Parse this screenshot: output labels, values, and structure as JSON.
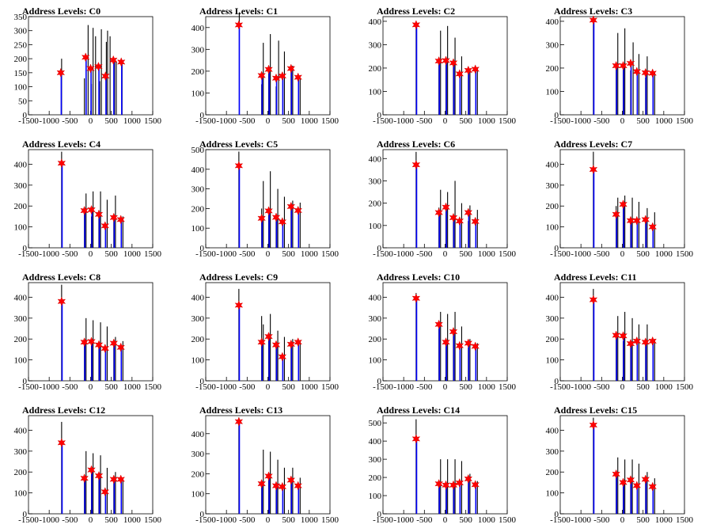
{
  "chart_data": [
    {
      "type": "bar",
      "title": "Address Levels: C0",
      "xlim": [
        -1500,
        1500
      ],
      "ylim": [
        0,
        350
      ],
      "yticks": [
        0,
        50,
        100,
        150,
        200,
        250,
        300,
        350
      ],
      "xticks": [
        -1500,
        -1000,
        -500,
        0,
        500,
        1000,
        1500
      ],
      "series": [
        {
          "x": [
            -700,
            -150,
            -60,
            20,
            60,
            120,
            220,
            260,
            380,
            410,
            470,
            580,
            620,
            760
          ],
          "values": [
            200,
            130,
            320,
            110,
            310,
            280,
            120,
            305,
            260,
            300,
            280,
            200,
            190,
            180
          ]
        }
      ],
      "peaks": {
        "x": [
          -720,
          -120,
          0,
          190,
          360,
          550,
          740
        ],
        "values": [
          150,
          205,
          165,
          172,
          138,
          195,
          188
        ]
      }
    },
    {
      "type": "bar",
      "title": "Address Levels: C1",
      "xlim": [
        -1500,
        1500
      ],
      "ylim": [
        0,
        450
      ],
      "yticks": [
        0,
        100,
        200,
        300,
        400
      ],
      "xticks": [
        -1500,
        -1000,
        -500,
        0,
        500,
        1000,
        1500
      ],
      "series": [
        {
          "x": [
            -690,
            -150,
            -110,
            20,
            60,
            200,
            260,
            360,
            400,
            560,
            600,
            740,
            780
          ],
          "values": [
            470,
            140,
            330,
            200,
            370,
            130,
            340,
            180,
            290,
            215,
            225,
            150,
            170
          ]
        }
      ],
      "peaks": {
        "x": [
          -700,
          -150,
          20,
          200,
          350,
          560,
          730
        ],
        "values": [
          412,
          180,
          208,
          168,
          178,
          212,
          172
        ]
      }
    },
    {
      "type": "bar",
      "title": "Address Levels: C2",
      "xlim": [
        -1500,
        1500
      ],
      "ylim": [
        0,
        420
      ],
      "yticks": [
        0,
        100,
        200,
        300,
        400
      ],
      "xticks": [
        -1500,
        -1000,
        -500,
        0,
        500,
        1000,
        1500
      ],
      "series": [
        {
          "x": [
            -700,
            -150,
            -110,
            20,
            60,
            200,
            240,
            360,
            400,
            560,
            600,
            740,
            780
          ],
          "values": [
            380,
            220,
            360,
            240,
            380,
            210,
            330,
            150,
            250,
            180,
            190,
            170,
            200
          ]
        }
      ],
      "peaks": {
        "x": [
          -700,
          -150,
          20,
          200,
          350,
          560,
          730
        ],
        "values": [
          385,
          230,
          232,
          222,
          175,
          190,
          195
        ]
      }
    },
    {
      "type": "bar",
      "title": "Address Levels: C3",
      "xlim": [
        -1500,
        1500
      ],
      "ylim": [
        0,
        420
      ],
      "yticks": [
        0,
        100,
        200,
        300,
        400
      ],
      "xticks": [
        -1500,
        -1000,
        -500,
        0,
        500,
        1000,
        1500
      ],
      "series": [
        {
          "x": [
            -700,
            -150,
            -110,
            20,
            60,
            200,
            260,
            360,
            400,
            560,
            600,
            740,
            780
          ],
          "values": [
            390,
            200,
            350,
            220,
            370,
            190,
            310,
            170,
            260,
            160,
            250,
            150,
            180
          ]
        }
      ],
      "peaks": {
        "x": [
          -700,
          -150,
          20,
          200,
          350,
          560,
          730
        ],
        "values": [
          405,
          210,
          210,
          220,
          185,
          180,
          178
        ]
      }
    },
    {
      "type": "bar",
      "title": "Address Levels: C4",
      "xlim": [
        -1500,
        1500
      ],
      "ylim": [
        0,
        470
      ],
      "yticks": [
        0,
        100,
        200,
        300,
        400
      ],
      "xticks": [
        -1500,
        -1000,
        -500,
        0,
        500,
        1000,
        1500
      ],
      "series": [
        {
          "x": [
            -700,
            -150,
            -110,
            20,
            60,
            200,
            240,
            360,
            400,
            560,
            600,
            740,
            780
          ],
          "values": [
            460,
            170,
            260,
            150,
            270,
            180,
            270,
            100,
            230,
            130,
            250,
            110,
            150
          ]
        }
      ],
      "peaks": {
        "x": [
          -700,
          -150,
          20,
          200,
          350,
          560,
          730
        ],
        "values": [
          405,
          178,
          182,
          160,
          105,
          145,
          135
        ]
      }
    },
    {
      "type": "bar",
      "title": "Address Levels: C5",
      "xlim": [
        -1500,
        1500
      ],
      "ylim": [
        0,
        500
      ],
      "yticks": [
        0,
        100,
        200,
        300,
        400,
        500
      ],
      "xticks": [
        -1500,
        -1000,
        -500,
        0,
        500,
        1000,
        1500
      ],
      "series": [
        {
          "x": [
            -700,
            -150,
            -110,
            20,
            60,
            200,
            240,
            360,
            400,
            560,
            600,
            740,
            780
          ],
          "values": [
            490,
            200,
            340,
            170,
            390,
            170,
            300,
            120,
            260,
            210,
            240,
            170,
            230
          ]
        }
      ],
      "peaks": {
        "x": [
          -700,
          -150,
          20,
          200,
          350,
          560,
          730
        ],
        "values": [
          418,
          150,
          188,
          155,
          132,
          210,
          190
        ]
      }
    },
    {
      "type": "bar",
      "title": "Address Levels: C6",
      "xlim": [
        -1500,
        1500
      ],
      "ylim": [
        0,
        440
      ],
      "yticks": [
        0,
        100,
        200,
        300,
        400
      ],
      "xticks": [
        -1500,
        -1000,
        -500,
        0,
        500,
        1000,
        1500
      ],
      "series": [
        {
          "x": [
            -700,
            -150,
            -110,
            20,
            60,
            200,
            240,
            360,
            400,
            560,
            600,
            740,
            780
          ],
          "values": [
            430,
            180,
            260,
            170,
            250,
            130,
            300,
            110,
            200,
            120,
            190,
            120,
            170
          ]
        }
      ],
      "peaks": {
        "x": [
          -700,
          -150,
          20,
          200,
          350,
          560,
          730
        ],
        "values": [
          372,
          158,
          182,
          135,
          120,
          158,
          118
        ]
      }
    },
    {
      "type": "bar",
      "title": "Address Levels: C7",
      "xlim": [
        -1500,
        1500
      ],
      "ylim": [
        0,
        470
      ],
      "yticks": [
        0,
        100,
        200,
        300,
        400
      ],
      "xticks": [
        -1500,
        -1000,
        -500,
        0,
        500,
        1000,
        1500
      ],
      "series": [
        {
          "x": [
            -700,
            -150,
            -110,
            20,
            60,
            200,
            240,
            360,
            400,
            560,
            600,
            740,
            780
          ],
          "values": [
            460,
            200,
            240,
            200,
            250,
            120,
            240,
            120,
            220,
            130,
            190,
            100,
            170
          ]
        }
      ],
      "peaks": {
        "x": [
          -700,
          -150,
          20,
          200,
          350,
          560,
          730
        ],
        "values": [
          375,
          160,
          208,
          130,
          130,
          135,
          100
        ]
      }
    },
    {
      "type": "bar",
      "title": "Address Levels: C8",
      "xlim": [
        -1500,
        1500
      ],
      "ylim": [
        0,
        470
      ],
      "yticks": [
        0,
        100,
        200,
        300,
        400
      ],
      "xticks": [
        -1500,
        -1000,
        -500,
        0,
        500,
        1000,
        1500
      ],
      "series": [
        {
          "x": [
            -700,
            -150,
            -110,
            20,
            60,
            200,
            240,
            360,
            400,
            560,
            600,
            740,
            780
          ],
          "values": [
            460,
            200,
            300,
            200,
            290,
            180,
            280,
            130,
            260,
            170,
            210,
            130,
            190
          ]
        }
      ],
      "peaks": {
        "x": [
          -700,
          -150,
          20,
          200,
          350,
          560,
          730
        ],
        "values": [
          380,
          185,
          188,
          172,
          155,
          180,
          160
        ]
      }
    },
    {
      "type": "bar",
      "title": "Address Levels: C9",
      "xlim": [
        -1500,
        1500
      ],
      "ylim": [
        0,
        470
      ],
      "yticks": [
        0,
        100,
        200,
        300,
        400
      ],
      "xticks": [
        -1500,
        -1000,
        -500,
        0,
        500,
        1000,
        1500
      ],
      "series": [
        {
          "x": [
            -700,
            -150,
            -110,
            20,
            60,
            200,
            240,
            360,
            400,
            560,
            600,
            740,
            780
          ],
          "values": [
            440,
            310,
            270,
            210,
            320,
            170,
            240,
            110,
            210,
            180,
            200,
            180,
            190
          ]
        }
      ],
      "peaks": {
        "x": [
          -700,
          -150,
          20,
          200,
          350,
          560,
          730
        ],
        "values": [
          362,
          185,
          212,
          172,
          115,
          175,
          185
        ]
      }
    },
    {
      "type": "bar",
      "title": "Address Levels: C10",
      "xlim": [
        -1500,
        1500
      ],
      "ylim": [
        0,
        470
      ],
      "yticks": [
        0,
        100,
        200,
        300,
        400
      ],
      "xticks": [
        -1500,
        -1000,
        -500,
        0,
        500,
        1000,
        1500
      ],
      "series": [
        {
          "x": [
            -700,
            -150,
            -110,
            20,
            60,
            200,
            240,
            360,
            400,
            560,
            600,
            740,
            780
          ],
          "values": [
            420,
            250,
            330,
            190,
            320,
            230,
            330,
            150,
            260,
            160,
            200,
            160,
            180
          ]
        }
      ],
      "peaks": {
        "x": [
          -700,
          -150,
          20,
          200,
          350,
          560,
          730
        ],
        "values": [
          395,
          270,
          185,
          235,
          168,
          180,
          165
        ]
      }
    },
    {
      "type": "bar",
      "title": "Address Levels: C11",
      "xlim": [
        -1500,
        1500
      ],
      "ylim": [
        0,
        470
      ],
      "yticks": [
        0,
        100,
        200,
        300,
        400
      ],
      "xticks": [
        -1500,
        -1000,
        -500,
        0,
        500,
        1000,
        1500
      ],
      "series": [
        {
          "x": [
            -700,
            -150,
            -110,
            20,
            60,
            200,
            240,
            360,
            400,
            560,
            600,
            740,
            780
          ],
          "values": [
            440,
            210,
            310,
            190,
            330,
            170,
            300,
            180,
            270,
            180,
            270,
            190,
            200
          ]
        }
      ],
      "peaks": {
        "x": [
          -700,
          -150,
          20,
          200,
          350,
          560,
          730
        ],
        "values": [
          388,
          218,
          215,
          178,
          190,
          185,
          190
        ]
      }
    },
    {
      "type": "bar",
      "title": "Address Levels: C12",
      "xlim": [
        -1500,
        1500
      ],
      "ylim": [
        0,
        470
      ],
      "yticks": [
        0,
        100,
        200,
        300,
        400
      ],
      "xticks": [
        -1500,
        -1000,
        -500,
        0,
        500,
        1000,
        1500
      ],
      "series": [
        {
          "x": [
            -700,
            -150,
            -110,
            20,
            60,
            200,
            240,
            360,
            400,
            560,
            600,
            740,
            780
          ],
          "values": [
            440,
            170,
            300,
            200,
            290,
            180,
            280,
            100,
            220,
            150,
            200,
            150,
            170
          ]
        }
      ],
      "peaks": {
        "x": [
          -700,
          -150,
          20,
          200,
          350,
          560,
          730
        ],
        "values": [
          340,
          170,
          210,
          182,
          105,
          165,
          165
        ]
      }
    },
    {
      "type": "bar",
      "title": "Address Levels: C13",
      "xlim": [
        -1500,
        1500
      ],
      "ylim": [
        0,
        490
      ],
      "yticks": [
        0,
        100,
        200,
        300,
        400
      ],
      "xticks": [
        -1500,
        -1000,
        -500,
        0,
        500,
        1000,
        1500
      ],
      "series": [
        {
          "x": [
            -700,
            -150,
            -110,
            20,
            60,
            200,
            240,
            360,
            400,
            560,
            600,
            740,
            780
          ],
          "values": [
            480,
            140,
            320,
            170,
            310,
            120,
            270,
            100,
            230,
            170,
            230,
            140,
            180
          ]
        }
      ],
      "peaks": {
        "x": [
          -700,
          -150,
          20,
          200,
          350,
          560,
          730
        ],
        "values": [
          460,
          150,
          188,
          140,
          135,
          168,
          140
        ]
      }
    },
    {
      "type": "bar",
      "title": "Address Levels: C14",
      "xlim": [
        -1500,
        1500
      ],
      "ylim": [
        0,
        540
      ],
      "yticks": [
        0,
        100,
        200,
        300,
        400,
        500
      ],
      "xticks": [
        -1500,
        -1000,
        -500,
        0,
        500,
        1000,
        1500
      ],
      "series": [
        {
          "x": [
            -700,
            -150,
            -110,
            20,
            60,
            200,
            240,
            360,
            400,
            560,
            600,
            740,
            780
          ],
          "values": [
            520,
            160,
            300,
            160,
            300,
            150,
            300,
            150,
            290,
            180,
            220,
            150,
            180
          ]
        }
      ],
      "peaks": {
        "x": [
          -700,
          -150,
          20,
          200,
          350,
          560,
          730
        ],
        "values": [
          412,
          165,
          158,
          158,
          170,
          192,
          160
        ]
      }
    },
    {
      "type": "bar",
      "title": "Address Levels: C15",
      "xlim": [
        -1500,
        1500
      ],
      "ylim": [
        0,
        470
      ],
      "yticks": [
        0,
        100,
        200,
        300,
        400
      ],
      "xticks": [
        -1500,
        -1000,
        -500,
        0,
        500,
        1000,
        1500
      ],
      "series": [
        {
          "x": [
            -700,
            -150,
            -110,
            20,
            60,
            200,
            240,
            360,
            400,
            560,
            600,
            740,
            780
          ],
          "values": [
            460,
            180,
            270,
            140,
            260,
            160,
            260,
            120,
            240,
            150,
            200,
            110,
            170
          ]
        }
      ],
      "peaks": {
        "x": [
          -700,
          -150,
          20,
          200,
          350,
          560,
          730
        ],
        "values": [
          425,
          190,
          150,
          162,
          135,
          165,
          130
        ]
      }
    }
  ],
  "colors": {
    "bar": "#000000",
    "fit": "#0000ff",
    "peak_marker": "#ff0000",
    "axis": "#000000"
  }
}
